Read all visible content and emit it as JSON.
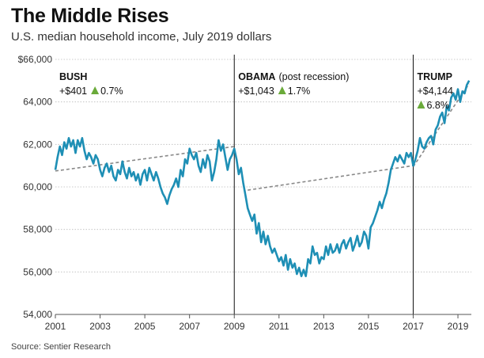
{
  "title": "The Middle Rises",
  "subtitle": "U.S. median household income, July 2019 dollars",
  "source": "Source: Sentier Research",
  "colors": {
    "line": "#1e8fb5",
    "trend": "#888888",
    "grid": "#bbbbbb",
    "divider": "#111111",
    "triangle": "#6aaa3a"
  },
  "chart_data": {
    "type": "line",
    "title": "The Middle Rises",
    "ylabel": "U.S. median household income, July 2019 dollars",
    "xlim": [
      2001,
      2019.6
    ],
    "ylim": [
      54000,
      66000
    ],
    "y_ticks": [
      {
        "value": 66000,
        "label": "$66,000"
      },
      {
        "value": 64000,
        "label": "64,000"
      },
      {
        "value": 62000,
        "label": "62,000"
      },
      {
        "value": 60000,
        "label": "60,000"
      },
      {
        "value": 58000,
        "label": "58,000"
      },
      {
        "value": 56000,
        "label": "56,000"
      },
      {
        "value": 54000,
        "label": "54,000"
      }
    ],
    "x_ticks": [
      {
        "value": 2001,
        "label": "2001"
      },
      {
        "value": 2003,
        "label": "2003"
      },
      {
        "value": 2005,
        "label": "2005"
      },
      {
        "value": 2007,
        "label": "2007"
      },
      {
        "value": 2009,
        "label": "2009"
      },
      {
        "value": 2011,
        "label": "2011"
      },
      {
        "value": 2013,
        "label": "2013"
      },
      {
        "value": 2015,
        "label": "2015"
      },
      {
        "value": 2017,
        "label": "2017"
      },
      {
        "value": 2019,
        "label": "2019"
      }
    ],
    "grid": true,
    "eras": [
      {
        "name": "BUSH",
        "sub": "",
        "change": "+$401",
        "pct": "0.7%",
        "start": 2001,
        "end": 2009
      },
      {
        "name": "OBAMA",
        "sub": "(post recession)",
        "change": "+$1,043",
        "pct": "1.7%",
        "start": 2009,
        "end": 2017
      },
      {
        "name": "TRUMP",
        "sub": "",
        "change": "+$4,144",
        "pct": "6.8%",
        "start": 2017,
        "end": 2019.6
      }
    ],
    "dividers": [
      2009,
      2017
    ],
    "trend_lines": [
      {
        "x": [
          2001,
          2009
        ],
        "y": [
          60750,
          61900
        ]
      },
      {
        "x": [
          2009.6,
          2017
        ],
        "y": [
          59850,
          61000
        ]
      },
      {
        "x": [
          2017,
          2019.5
        ],
        "y": [
          60950,
          64850
        ]
      }
    ],
    "series": [
      {
        "x": [
          2001.0,
          2001.1,
          2001.2,
          2001.3,
          2001.4,
          2001.5,
          2001.6,
          2001.7,
          2001.8,
          2001.9,
          2002.0,
          2002.1,
          2002.2,
          2002.3,
          2002.4,
          2002.5,
          2002.6,
          2002.7,
          2002.8,
          2002.9,
          2003.0,
          2003.1,
          2003.2,
          2003.3,
          2003.4,
          2003.5,
          2003.6,
          2003.7,
          2003.8,
          2003.9,
          2004.0,
          2004.1,
          2004.2,
          2004.3,
          2004.4,
          2004.5,
          2004.6,
          2004.7,
          2004.8,
          2004.9,
          2005.0,
          2005.1,
          2005.2,
          2005.3,
          2005.4,
          2005.5,
          2005.6,
          2005.7,
          2005.8,
          2005.9,
          2006.0,
          2006.1,
          2006.2,
          2006.3,
          2006.4,
          2006.5,
          2006.6,
          2006.7,
          2006.8,
          2006.9,
          2007.0,
          2007.1,
          2007.2,
          2007.3,
          2007.4,
          2007.5,
          2007.6,
          2007.7,
          2007.8,
          2007.9,
          2008.0,
          2008.1,
          2008.2,
          2008.3,
          2008.4,
          2008.5,
          2008.6,
          2008.7,
          2008.8,
          2008.9,
          2009.0,
          2009.1,
          2009.2,
          2009.3,
          2009.4,
          2009.5,
          2009.6,
          2009.7,
          2009.8,
          2009.9,
          2010.0,
          2010.1,
          2010.2,
          2010.3,
          2010.4,
          2010.5,
          2010.6,
          2010.7,
          2010.8,
          2010.9,
          2011.0,
          2011.1,
          2011.2,
          2011.3,
          2011.4,
          2011.5,
          2011.6,
          2011.7,
          2011.8,
          2011.9,
          2012.0,
          2012.1,
          2012.2,
          2012.3,
          2012.4,
          2012.5,
          2012.6,
          2012.7,
          2012.8,
          2012.9,
          2013.0,
          2013.1,
          2013.2,
          2013.3,
          2013.4,
          2013.5,
          2013.6,
          2013.7,
          2013.8,
          2013.9,
          2014.0,
          2014.1,
          2014.2,
          2014.3,
          2014.4,
          2014.5,
          2014.6,
          2014.7,
          2014.8,
          2014.9,
          2015.0,
          2015.1,
          2015.2,
          2015.3,
          2015.4,
          2015.5,
          2015.6,
          2015.7,
          2015.8,
          2015.9,
          2016.0,
          2016.1,
          2016.2,
          2016.3,
          2016.4,
          2016.5,
          2016.6,
          2016.7,
          2016.8,
          2016.9,
          2017.0,
          2017.1,
          2017.2,
          2017.3,
          2017.4,
          2017.5,
          2017.6,
          2017.7,
          2017.8,
          2017.9,
          2018.0,
          2018.1,
          2018.2,
          2018.3,
          2018.4,
          2018.5,
          2018.6,
          2018.7,
          2018.8,
          2018.9,
          2019.0,
          2019.1,
          2019.2,
          2019.3,
          2019.4,
          2019.5
        ],
        "y": [
          60800,
          61400,
          61900,
          61500,
          62100,
          61800,
          62300,
          61900,
          62200,
          61600,
          62200,
          61900,
          62300,
          61700,
          61300,
          61600,
          61400,
          61100,
          61500,
          61300,
          60800,
          60500,
          60900,
          61100,
          60700,
          61000,
          60500,
          60300,
          60800,
          60600,
          61200,
          60700,
          60400,
          60900,
          60500,
          60700,
          60300,
          60600,
          60100,
          60600,
          60800,
          60300,
          60900,
          60600,
          60300,
          60700,
          60400,
          60000,
          59700,
          59500,
          59200,
          59600,
          59900,
          60100,
          60400,
          60000,
          60800,
          60500,
          61300,
          61100,
          61800,
          61500,
          61300,
          61600,
          61000,
          60700,
          61300,
          60900,
          61500,
          61200,
          60300,
          60700,
          61300,
          62200,
          61700,
          62000,
          61400,
          60800,
          61300,
          61500,
          61800,
          61300,
          60600,
          60900,
          60200,
          59600,
          59000,
          58700,
          58400,
          58700,
          57800,
          58300,
          57400,
          57900,
          57300,
          57700,
          57200,
          56900,
          57100,
          56800,
          56500,
          56700,
          56300,
          56800,
          56100,
          56600,
          56200,
          56400,
          55900,
          56200,
          55800,
          56100,
          55800,
          56600,
          56400,
          57200,
          56800,
          56900,
          56400,
          56700,
          56600,
          57200,
          56800,
          57300,
          56900,
          57000,
          57300,
          56900,
          57300,
          57500,
          57100,
          57400,
          57600,
          57000,
          57300,
          57700,
          57200,
          57400,
          57900,
          57700,
          57100,
          58100,
          58300,
          58600,
          58900,
          59300,
          59000,
          59400,
          59700,
          60200,
          60800,
          61100,
          61400,
          61200,
          61500,
          61300,
          61100,
          61600,
          61400,
          61600,
          61000,
          61300,
          61700,
          62300,
          61900,
          61800,
          62100,
          62300,
          62400,
          62000,
          62700,
          62900,
          63300,
          63500,
          63000,
          63800,
          63600,
          64200,
          64400,
          64100,
          64600,
          64000,
          64500,
          64400,
          64800,
          65000
        ]
      }
    ]
  }
}
